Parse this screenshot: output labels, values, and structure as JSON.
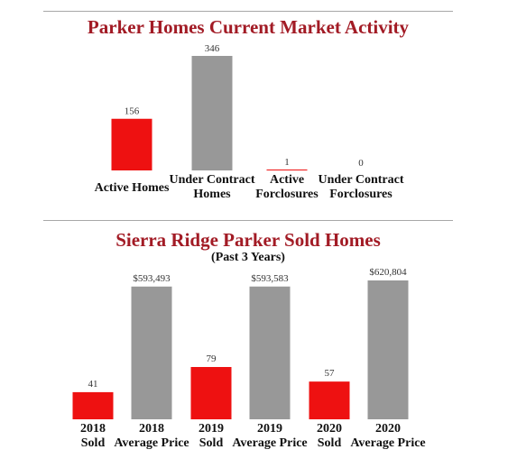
{
  "chart_data": [
    {
      "type": "bar",
      "title": "Parker Homes Current Market Activity",
      "categories": [
        "Active Homes",
        "Under Contract Homes",
        "Active Forclosures",
        "Under Contract Forclosures"
      ],
      "category_lines": [
        [
          "Active Homes"
        ],
        [
          "Under Contract",
          "Homes"
        ],
        [
          "Active",
          "Forclosures"
        ],
        [
          "Under Contract",
          "Forclosures"
        ]
      ],
      "values": [
        156,
        346,
        1,
        0
      ],
      "value_labels": [
        "156",
        "346",
        "1",
        "0"
      ],
      "colors": [
        "#ee1111",
        "#989898",
        "#ee1111",
        "#989898"
      ],
      "ylim": [
        0,
        346
      ],
      "grid": false
    },
    {
      "type": "bar",
      "title": "Sierra Ridge Parker Sold Homes",
      "subtitle": "(Past 3 Years)",
      "categories": [
        "2018 Sold",
        "2018 Average Price",
        "2019 Sold",
        "2019 Average Price",
        "2020 Sold",
        "2020 Average Price"
      ],
      "category_lines": [
        [
          "2018",
          "Sold"
        ],
        [
          "2018",
          "Average Price"
        ],
        [
          "2019",
          "Sold"
        ],
        [
          "2019",
          "Average Price"
        ],
        [
          "2020",
          "Sold"
        ],
        [
          "2020",
          "Average Price"
        ]
      ],
      "values": [
        41,
        593493,
        79,
        593583,
        57,
        620804
      ],
      "value_labels": [
        "41",
        "$593,493",
        "79",
        "$593,583",
        "57",
        "$620,804"
      ],
      "colors": [
        "#ee1111",
        "#989898",
        "#ee1111",
        "#989898",
        "#ee1111",
        "#989898"
      ],
      "grid": false
    }
  ]
}
